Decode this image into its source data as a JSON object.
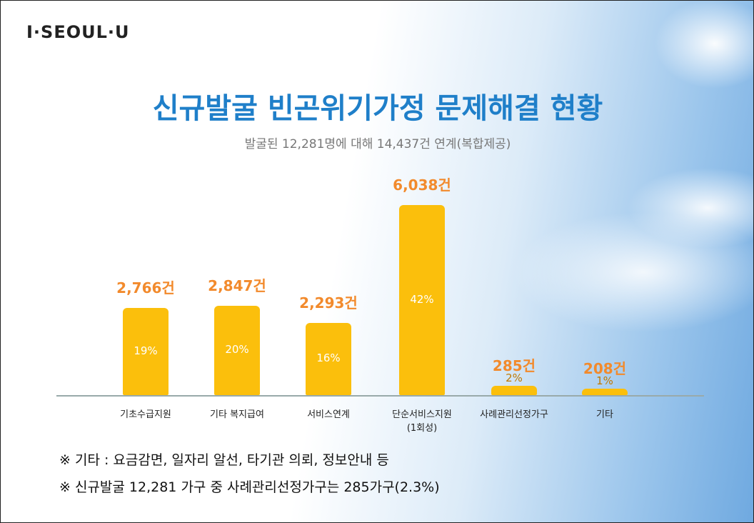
{
  "header": {
    "logo": "I·SEOUL·U",
    "title": "신규발굴 빈곤위기가정 문제해결 현황",
    "subtitle": "발굴된 12,281명에 대해 14,437건 연계(복합제공)"
  },
  "chart_data": {
    "type": "bar",
    "categories": [
      "기초수급지원",
      "기타 복지급여",
      "서비스연계",
      "단순서비스지원\n(1회성)",
      "사례관리선정가구",
      "기타"
    ],
    "values": [
      2766,
      2847,
      2293,
      6038,
      285,
      208
    ],
    "value_labels": [
      "2,766건",
      "2,847건",
      "2,293건",
      "6,038건",
      "285건",
      "208건"
    ],
    "shares": {
      "values": [
        19,
        20,
        16,
        42,
        2,
        1
      ],
      "value_labels": [
        "19%",
        "20%",
        "16%",
        "42%",
        "2%",
        "1%"
      ]
    },
    "color": "#fbbf0c"
  },
  "notes": [
    "※ 기타 : 요금감면, 일자리 알선, 타기관 의뢰, 정보안내 등",
    "※ 신규발굴 12,281 가구 중 사례관리선정가구는 285가구(2.3%)"
  ]
}
